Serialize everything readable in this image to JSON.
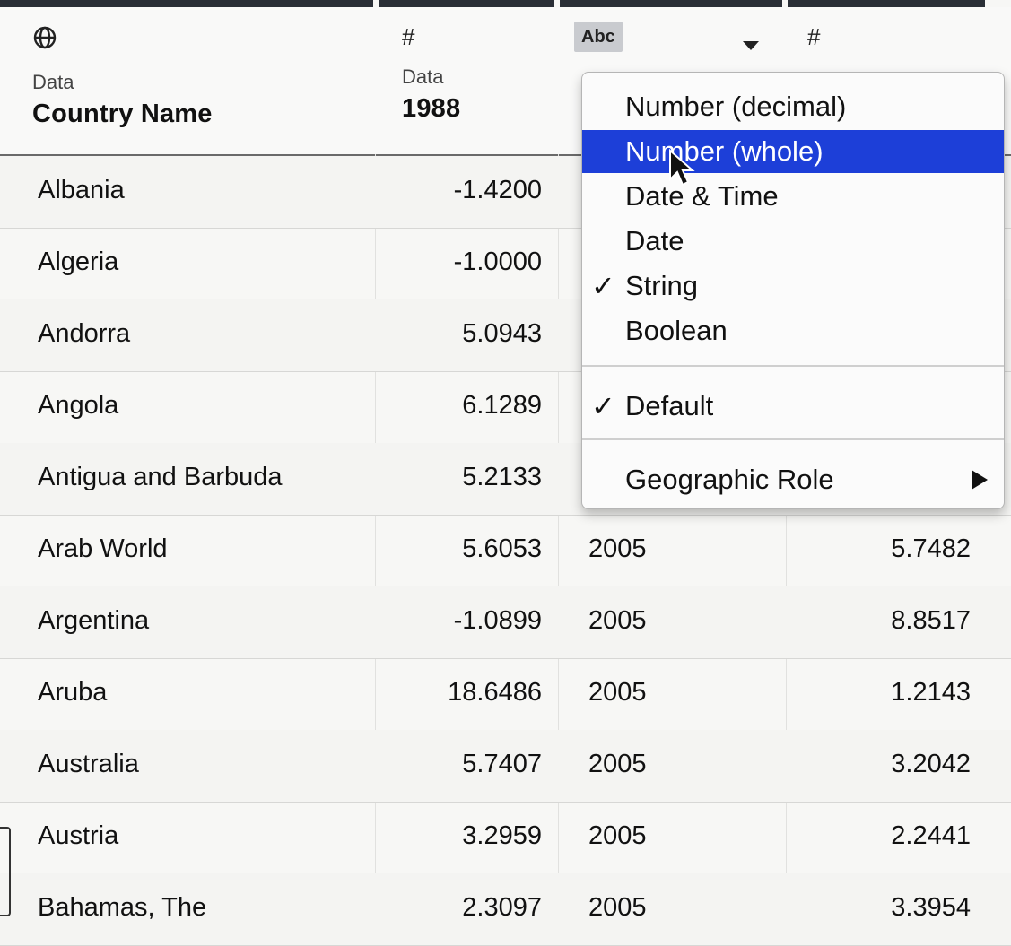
{
  "columns": [
    {
      "icon": "globe-icon",
      "source": "Data",
      "name": "Country Name"
    },
    {
      "icon": "number-icon",
      "source": "Data",
      "name": "1988"
    },
    {
      "icon": "string-icon",
      "badge": "Abc"
    },
    {
      "icon": "number-icon"
    }
  ],
  "rows": [
    {
      "country": "Albania",
      "v1988": "-1.4200",
      "year": "",
      "value": ""
    },
    {
      "country": "Algeria",
      "v1988": "-1.0000",
      "year": "",
      "value": ""
    },
    {
      "country": "Andorra",
      "v1988": "5.0943",
      "year": "",
      "value": ""
    },
    {
      "country": "Angola",
      "v1988": "6.1289",
      "year": "",
      "value": ""
    },
    {
      "country": "Antigua and Barbuda",
      "v1988": "5.2133",
      "year": "",
      "value": ""
    },
    {
      "country": "Arab World",
      "v1988": "5.6053",
      "year": "2005",
      "value": "5.7482"
    },
    {
      "country": "Argentina",
      "v1988": "-1.0899",
      "year": "2005",
      "value": "8.8517"
    },
    {
      "country": "Aruba",
      "v1988": "18.6486",
      "year": "2005",
      "value": "1.2143"
    },
    {
      "country": "Australia",
      "v1988": "5.7407",
      "year": "2005",
      "value": "3.2042"
    },
    {
      "country": "Austria",
      "v1988": "3.2959",
      "year": "2005",
      "value": "2.2441"
    },
    {
      "country": "Bahamas, The",
      "v1988": "2.3097",
      "year": "2005",
      "value": "3.3954"
    }
  ],
  "menu": {
    "items": [
      {
        "label": "Number (decimal)",
        "checked": false,
        "active": false
      },
      {
        "label": "Number (whole)",
        "checked": false,
        "active": true
      },
      {
        "label": "Date & Time",
        "checked": false,
        "active": false
      },
      {
        "label": "Date",
        "checked": false,
        "active": false
      },
      {
        "label": "String",
        "checked": true,
        "active": false
      },
      {
        "label": "Boolean",
        "checked": false,
        "active": false
      }
    ],
    "default_label": "Default",
    "default_checked": true,
    "geo_label": "Geographic Role",
    "check_glyph": "✓"
  },
  "colors": {
    "accent": "#1d3fd8",
    "header_rule": "#6a6a6a"
  }
}
